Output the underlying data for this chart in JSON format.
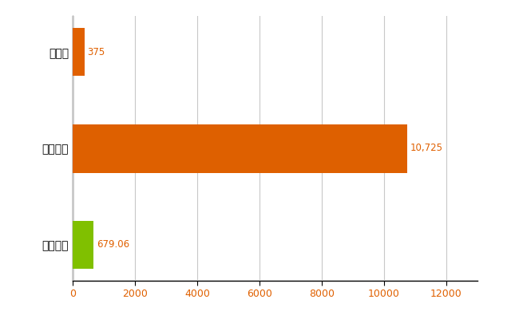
{
  "categories": [
    "全国平均",
    "全国最大",
    "栃木県"
  ],
  "values": [
    679.06,
    10725,
    375
  ],
  "bar_colors": [
    "#80c000",
    "#80c000",
    "#e06000"
  ],
  "value_labels": [
    "679.06",
    "10,725",
    "375"
  ],
  "xlim": [
    0,
    13000
  ],
  "xticks": [
    0,
    2000,
    4000,
    6000,
    8000,
    10000,
    12000
  ],
  "grid_color": "#c8c8c8",
  "label_color": "#e06000",
  "tick_label_color": "#e06000",
  "figsize": [
    6.5,
    4.0
  ],
  "dpi": 100,
  "bar_height": 0.5,
  "noise_density": 0.12,
  "noise_color": "#e06000",
  "green_color": "#80c000",
  "orange_color": "#e06000"
}
